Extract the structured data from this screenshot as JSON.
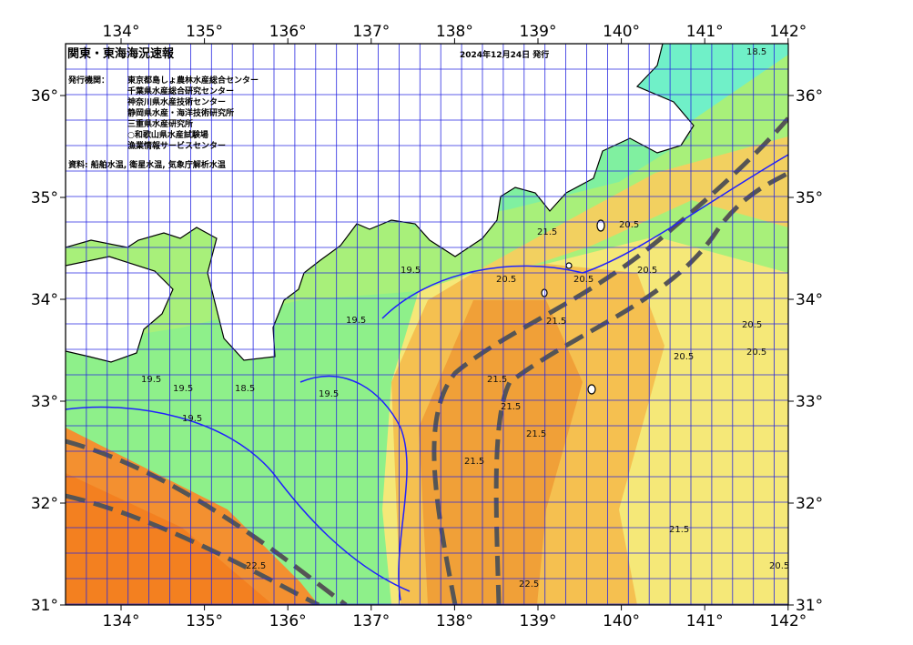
{
  "header": {
    "title": "関東・東海海況速報",
    "date": "2024年12月24日 発行",
    "issuers_label": "発行機関：",
    "issuers": [
      "東京都島しょ農林水産総合センター",
      "千葉県水産総合研究センター",
      "神奈川県水産技術センター",
      "静岡県水産・海洋技術研究所",
      "三重県水産研究所",
      "○和歌山県水産試験場",
      "漁業情報サービスセンター"
    ],
    "source": "資料: 船舶水温, 衛星水温, 気象庁解析水温"
  },
  "map": {
    "lon_ticks": [
      {
        "value": 134,
        "label": "134°"
      },
      {
        "value": 135,
        "label": "135°"
      },
      {
        "value": 136,
        "label": "136°"
      },
      {
        "value": 137,
        "label": "137°"
      },
      {
        "value": 138,
        "label": "138°"
      },
      {
        "value": 139,
        "label": "139°"
      },
      {
        "value": 140,
        "label": "140°"
      },
      {
        "value": 141,
        "label": "141°"
      },
      {
        "value": 142,
        "label": "142°"
      }
    ],
    "lat_ticks": [
      {
        "value": 31,
        "label": "31°"
      },
      {
        "value": 32,
        "label": "32°"
      },
      {
        "value": 33,
        "label": "33°"
      },
      {
        "value": 34,
        "label": "34°"
      },
      {
        "value": 35,
        "label": "35°"
      },
      {
        "value": 36,
        "label": "36°"
      }
    ],
    "contour_labels": [
      "19.5",
      "19.5",
      "19.5",
      "18.5",
      "19.5",
      "19.5",
      "20.5",
      "21.5",
      "21.5",
      "21.5",
      "20.5",
      "20.5",
      "20.5",
      "20.5",
      "21.5",
      "21.5",
      "22.5",
      "22.5",
      "21.5",
      "20.5",
      "20.5",
      "19.5",
      "18.5",
      "21.5",
      "20.5"
    ]
  }
}
